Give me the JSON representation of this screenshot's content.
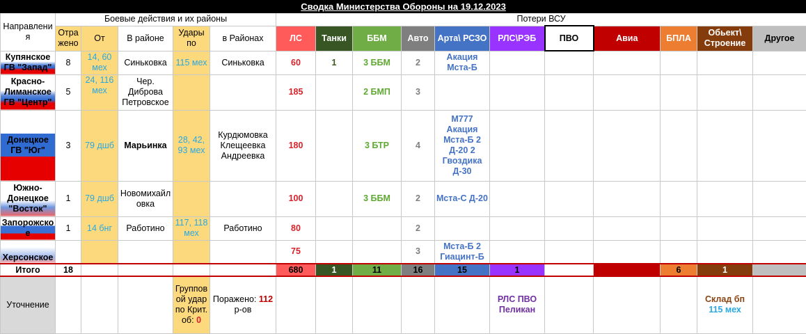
{
  "title": "Сводка Министерства Обороны на 19.12.2023",
  "groups": {
    "combat": "Боевые действия и их районы",
    "losses": "Потери ВСУ"
  },
  "headers": {
    "direction": "Направления",
    "repelled": "Отра жено",
    "from": "От",
    "in_area": "В районе",
    "strikes": "Удары по",
    "in_areas": "в Районах",
    "ls": "ЛС",
    "tanks": "Танки",
    "bbm": "ББМ",
    "auto": "Авто",
    "arta": "Арта\\ РСЗО",
    "rls": "РЛС\\РЭБ",
    "pvo": "ПВО",
    "avia": "Авиа",
    "bpla": "БПЛА",
    "object": "Обьект\\ Строение",
    "other": "Другое"
  },
  "colors": {
    "ls": "#ff5b5b",
    "tanks": "#375623",
    "bbm": "#70ad47",
    "auto": "#7f7f7f",
    "arta": "#4472c4",
    "rls": "#9933ff",
    "avia": "#c00000",
    "bpla": "#ed7d31",
    "object": "#843c0c",
    "other": "#bfbfbf",
    "yellow": "#fdd97e",
    "cyan": "#29a8e0"
  },
  "rows": [
    {
      "direction": "Купянское ГВ \"Запад\"",
      "repelled": "8",
      "from": "14, 60 мех",
      "in_area": "Синьковка",
      "strikes": "115 мех",
      "in_areas": "Синьковка",
      "ls": "60",
      "tanks": "1",
      "bbm": "3 ББМ",
      "auto": "2",
      "arta": "Акация Мста-Б"
    },
    {
      "direction": "Красно-Лиманское ГВ \"Центр\"",
      "repelled": "5",
      "from": "24, 116 мех",
      "in_area": "Чер. Диброва Петровское",
      "strikes": "",
      "in_areas": "",
      "ls": "185",
      "tanks": "",
      "bbm": "2 БМП",
      "auto": "3",
      "arta": ""
    },
    {
      "direction": "Донецкое ГВ \"Юг\"",
      "repelled": "3",
      "from": "79 дшб",
      "in_area": "Марьинка",
      "strikes": "28, 42, 93 мех",
      "in_areas": "Курдюмовка Клещеевка Андреевка",
      "ls": "180",
      "tanks": "",
      "bbm": "3 БТР",
      "auto": "4",
      "arta": "М777 Акация Мста-Б 2 Д-20 2 Гвоздика Д-30"
    },
    {
      "direction": "Южно-Донецкое \"Восток\"",
      "repelled": "1",
      "from": "79 дшб",
      "in_area": "Новомихайловка",
      "strikes": "",
      "in_areas": "",
      "ls": "100",
      "tanks": "",
      "bbm": "3 ББМ",
      "auto": "2",
      "arta": "Мста-С Д-20"
    },
    {
      "direction": "Запорожское",
      "repelled": "1",
      "from": "14 бнг",
      "in_area": "Работино",
      "strikes": "117, 118 мех",
      "in_areas": "Работино",
      "ls": "80",
      "tanks": "",
      "bbm": "",
      "auto": "2",
      "arta": ""
    },
    {
      "direction": "Херсонское",
      "repelled": "",
      "from": "",
      "in_area": "",
      "strikes": "",
      "in_areas": "",
      "ls": "75",
      "tanks": "",
      "bbm": "",
      "auto": "3",
      "arta": "Мста-Б 2 Гиацинт-Б"
    }
  ],
  "totals": {
    "label": "Итого",
    "repelled": "18",
    "ls": "680",
    "tanks": "1",
    "bbm": "11",
    "auto": "16",
    "arta": "15",
    "rls": "1",
    "pvo": "",
    "avia": "",
    "bpla": "6",
    "object": "1"
  },
  "clarification": {
    "label": "Уточнение",
    "group_strike": "Групповой удар по Крит. об:",
    "group_strike_count": "0",
    "hit_label": "Поражено:",
    "hit_count": "112",
    "hit_suffix": "р-ов",
    "rls_note": "РЛС ПВО Пеликан",
    "object_note": "Склад бп",
    "object_note2": "115 мех"
  }
}
